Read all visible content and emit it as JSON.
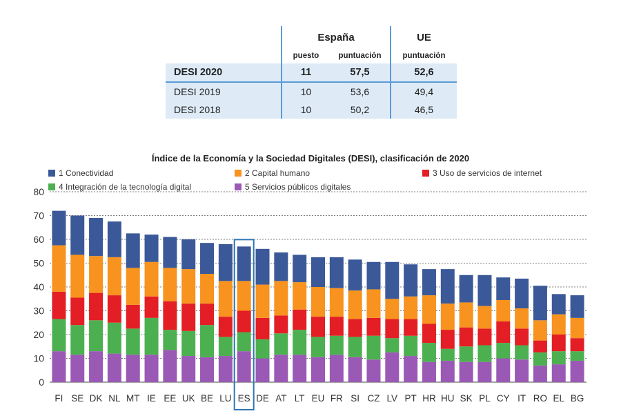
{
  "table": {
    "spain_header": "España",
    "eu_header": "UE",
    "col_rank": "puesto",
    "col_score": "puntuación",
    "col_eu_score": "puntuación",
    "rows": [
      {
        "label": "DESI 2020",
        "rank": "11",
        "score": "57,5",
        "eu": "52,6"
      },
      {
        "label": "DESI 2019",
        "rank": "10",
        "score": "53,6",
        "eu": "49,4"
      },
      {
        "label": "DESI 2018",
        "rank": "10",
        "score": "50,2",
        "eu": "46,5"
      }
    ]
  },
  "legend": [
    {
      "label": "1 Conectividad",
      "color": "#3b5998"
    },
    {
      "label": "2 Capital humano",
      "color": "#f7931e"
    },
    {
      "label": "3 Uso de servicios de internet",
      "color": "#e31e24"
    },
    {
      "label": "4 Integración de la tecnología digital",
      "color": "#4cb050"
    },
    {
      "label": "5 Servicios públicos digitales",
      "color": "#9b59b6"
    }
  ],
  "chart_data": {
    "type": "stacked-bar",
    "title": "Índice de la Economía y la Sociedad Digitales (DESI), clasificación de 2020",
    "xlabel": "",
    "ylabel": "",
    "ylim": [
      0,
      80
    ],
    "yticks": [
      0,
      10,
      20,
      30,
      40,
      50,
      60,
      70,
      80
    ],
    "grid": true,
    "highlight": "ES",
    "categories": [
      "FI",
      "SE",
      "DK",
      "NL",
      "MT",
      "IE",
      "EE",
      "UK",
      "BE",
      "LU",
      "ES",
      "DE",
      "AT",
      "LT",
      "EU",
      "FR",
      "SI",
      "CZ",
      "LV",
      "PT",
      "HR",
      "HU",
      "SK",
      "PL",
      "CY",
      "IT",
      "RO",
      "EL",
      "BG"
    ],
    "series": [
      {
        "name": "5 Servicios públicos digitales",
        "color": "#9b59b6",
        "values": [
          13,
          11.5,
          13,
          12,
          11.5,
          11.5,
          13.5,
          11,
          10.5,
          11,
          13,
          10,
          11.5,
          11.5,
          10.5,
          11.5,
          10.5,
          9.5,
          12.5,
          11,
          8.5,
          9,
          8.5,
          8.5,
          10,
          9.5,
          7,
          7.5,
          9
        ]
      },
      {
        "name": "4 Integración de la tecnología digital",
        "color": "#4cb050",
        "values": [
          13.5,
          12.5,
          13,
          13,
          11,
          15.5,
          8.5,
          10.5,
          13.5,
          8,
          8,
          8,
          9,
          10.5,
          8.5,
          8,
          8.5,
          10,
          6,
          8.5,
          8,
          5,
          6.5,
          7,
          6.5,
          6,
          5.5,
          5.5,
          4
        ]
      },
      {
        "name": "3 Uso de servicios de internet",
        "color": "#e31e24",
        "values": [
          11.5,
          11.5,
          11.5,
          11.5,
          10,
          9,
          12,
          11.5,
          9,
          8.5,
          9,
          9,
          7.5,
          8.5,
          8.5,
          8,
          7.5,
          7.5,
          8,
          7,
          8,
          8,
          8,
          7,
          9,
          7,
          5,
          7,
          5.5
        ]
      },
      {
        "name": "2 Capital humano",
        "color": "#f7931e",
        "values": [
          19.5,
          18,
          15.5,
          16,
          15.5,
          14.5,
          14,
          14.5,
          12.5,
          15,
          12.5,
          14,
          14.5,
          11.5,
          12.5,
          12,
          12,
          12,
          8.5,
          9.5,
          12,
          11,
          10.5,
          9.5,
          9,
          8.5,
          8.5,
          8.5,
          8.5
        ]
      },
      {
        "name": "1 Conectividad",
        "color": "#3b5998",
        "values": [
          14.5,
          16.5,
          16,
          15,
          14.5,
          11.5,
          13,
          12.5,
          13,
          15.5,
          14.5,
          15,
          12,
          11.5,
          12.5,
          13,
          13,
          11.5,
          15.5,
          13.5,
          11,
          14.5,
          11.5,
          13,
          9.5,
          12.5,
          14.5,
          8.5,
          9.5
        ]
      }
    ]
  }
}
